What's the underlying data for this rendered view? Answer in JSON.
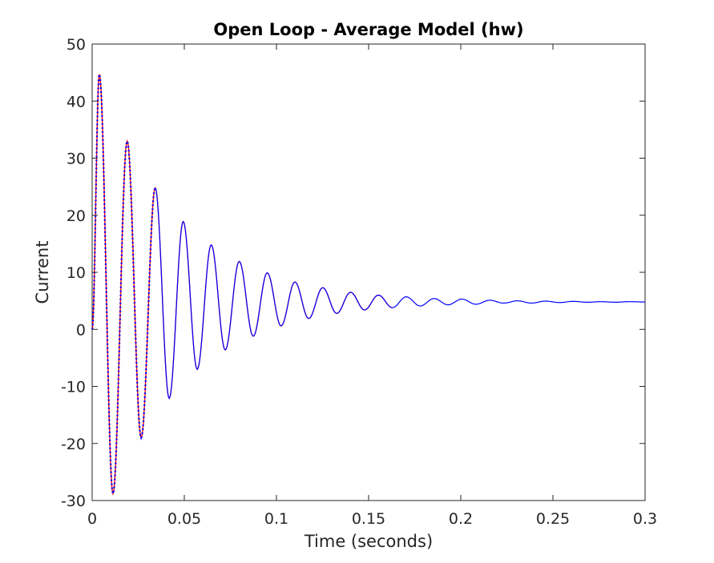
{
  "chart_data": {
    "type": "line",
    "title": "Open Loop - Average Model (hw)",
    "xlabel": "Time (seconds)",
    "ylabel": "Current",
    "xlim": [
      0,
      0.3
    ],
    "ylim": [
      -30,
      50
    ],
    "xticks": [
      0,
      0.05,
      0.1,
      0.15,
      0.2,
      0.25,
      0.3
    ],
    "xtick_labels": [
      "0",
      "0.05",
      "0.1",
      "0.15",
      "0.2",
      "0.25",
      "0.3"
    ],
    "yticks": [
      -30,
      -20,
      -10,
      0,
      10,
      20,
      30,
      40,
      50
    ],
    "ytick_labels": [
      "-30",
      "-20",
      "-10",
      "0",
      "10",
      "20",
      "30",
      "40",
      "50"
    ],
    "grid": false,
    "legend": "none",
    "series": [
      {
        "color": "#ff0000",
        "style": "solid",
        "x": [
          0,
          0.0039,
          0.0113,
          0.019,
          0.0266,
          0.0342,
          0.0418,
          0.0494,
          0.057,
          0.0646,
          0.0722,
          0.0798,
          0.0874,
          0.095,
          0.1025,
          0.11,
          0.1175,
          0.1251,
          0.1327,
          0.1402,
          0.1478,
          0.1553,
          0.1629
        ],
        "y": [
          0,
          44.7,
          -28.8,
          33.0,
          -19.0,
          24.8,
          -12.1,
          18.9,
          -7.0,
          14.8,
          -3.6,
          11.9,
          -1.2,
          9.9,
          0.6,
          8.3,
          1.9,
          7.3,
          2.8,
          6.5,
          3.4,
          6.0,
          3.8
        ]
      },
      {
        "color": "#0000ff",
        "style": "dotted-then-solid",
        "x": [
          0,
          0.0039,
          0.0113,
          0.019,
          0.0266,
          0.0342,
          0.0418,
          0.0494,
          0.057,
          0.0646,
          0.0722,
          0.0798,
          0.0874,
          0.095,
          0.1025,
          0.11,
          0.1175,
          0.1251,
          0.1327,
          0.1402,
          0.1478,
          0.1553,
          0.1629,
          0.1704,
          0.178,
          0.1855,
          0.1931,
          0.2006,
          0.2082,
          0.2157,
          0.2233,
          0.2308,
          0.2384,
          0.2459,
          0.2535,
          0.261,
          0.2686,
          0.2761,
          0.2837,
          0.2912,
          0.3
        ],
        "y": [
          0,
          44.7,
          -28.8,
          33.0,
          -19.0,
          24.8,
          -12.1,
          18.9,
          -7.0,
          14.8,
          -3.6,
          11.9,
          -1.2,
          9.9,
          0.6,
          8.3,
          1.9,
          7.3,
          2.8,
          6.5,
          3.4,
          6.0,
          3.8,
          5.7,
          4.1,
          5.4,
          4.3,
          5.3,
          4.4,
          5.1,
          4.6,
          5.0,
          4.6,
          4.95,
          4.7,
          4.9,
          4.75,
          4.85,
          4.75,
          4.85,
          4.8
        ]
      }
    ]
  }
}
